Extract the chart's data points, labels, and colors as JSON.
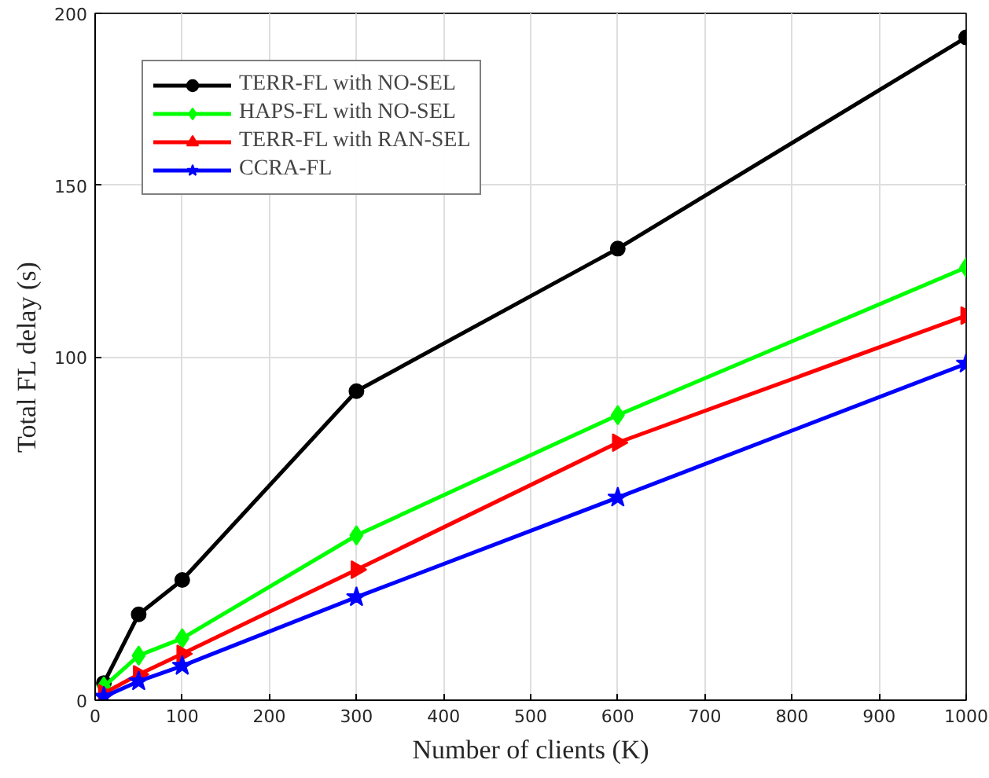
{
  "chart_data": {
    "type": "line",
    "xlabel": "Number of clients (K)",
    "ylabel": "Total FL delay (s)",
    "x": [
      10,
      50,
      100,
      300,
      600,
      1000
    ],
    "series": [
      {
        "name": "TERR-FL with NO-SEL",
        "color": "#000000",
        "marker": "circle",
        "values": [
          5,
          25,
          35,
          90,
          131.5,
          193
        ]
      },
      {
        "name": "HAPS-FL with NO-SEL",
        "color": "#00ff00",
        "marker": "diamond",
        "values": [
          4,
          13,
          18,
          48,
          83,
          126
        ]
      },
      {
        "name": "TERR-FL with RAN-SEL",
        "color": "#ff0000",
        "marker": "triangle",
        "values": [
          2,
          7.5,
          13.5,
          38,
          75,
          112
        ]
      },
      {
        "name": "CCRA-FL",
        "color": "#0000ff",
        "marker": "star",
        "values": [
          1,
          5.5,
          10,
          30,
          59,
          98
        ]
      }
    ],
    "xlim": [
      0,
      1000
    ],
    "xticks": [
      0,
      100,
      200,
      300,
      400,
      500,
      600,
      700,
      800,
      900,
      1000
    ],
    "ylim": [
      0,
      200
    ],
    "yticks": [
      0,
      100,
      150,
      200
    ],
    "grid": true,
    "legend": "top left",
    "line_style": "solid"
  }
}
